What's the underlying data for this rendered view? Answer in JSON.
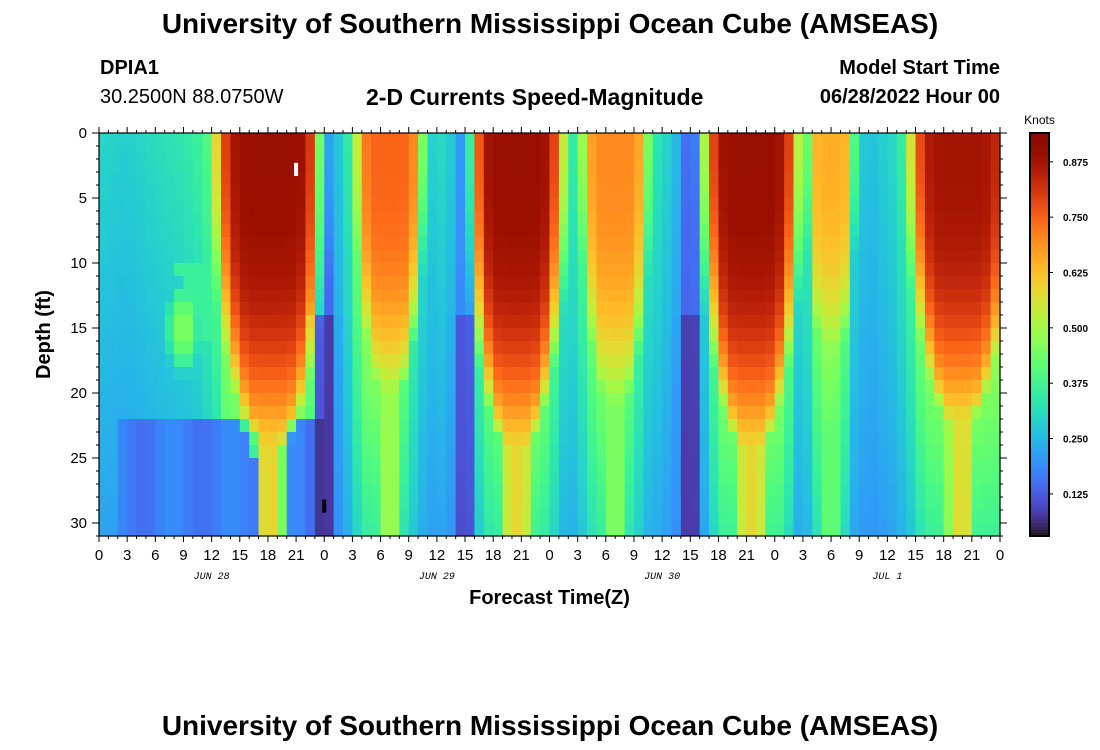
{
  "header": {
    "title": "University of Southern Mississippi Ocean Cube (AMSEAS)",
    "station": "DPIA1",
    "coords": "30.2500N  88.0750W",
    "plot_title": "2-D Currents Speed-Magnitude",
    "model_start_label": "Model Start Time",
    "model_start_value": "06/28/2022 Hour 00"
  },
  "footer": {
    "title": "University of Southern Mississippi Ocean Cube (AMSEAS)"
  },
  "chart_data": {
    "type": "heatmap",
    "title": "2-D Currents Speed-Magnitude",
    "xlabel": "Forecast Time(Z)",
    "ylabel": "Depth (ft)",
    "x_unit": "hours since 06/28/2022 00Z",
    "xlim": [
      0,
      96
    ],
    "ylim": [
      0,
      31
    ],
    "x_tick_values": [
      0,
      3,
      6,
      9,
      12,
      15,
      18,
      21,
      24,
      27,
      30,
      33,
      36,
      39,
      42,
      45,
      48,
      51,
      54,
      57,
      60,
      63,
      66,
      69,
      72,
      75,
      78,
      81,
      84,
      87,
      90,
      93,
      96
    ],
    "x_tick_labels": [
      "0",
      "3",
      "6",
      "9",
      "12",
      "15",
      "18",
      "21",
      "0",
      "3",
      "6",
      "9",
      "12",
      "15",
      "18",
      "21",
      "0",
      "3",
      "6",
      "9",
      "12",
      "15",
      "18",
      "21",
      "0",
      "3",
      "6",
      "9",
      "12",
      "15",
      "18",
      "21",
      "0"
    ],
    "date_labels": [
      {
        "hour": 12,
        "label": "JUN 28"
      },
      {
        "hour": 36,
        "label": "JUN 29"
      },
      {
        "hour": 60,
        "label": "JUN 30"
      },
      {
        "hour": 84,
        "label": "JUL 1"
      }
    ],
    "y_tick_values": [
      0,
      5,
      10,
      15,
      20,
      25,
      30
    ],
    "y_tick_labels": [
      "0",
      "5",
      "10",
      "15",
      "20",
      "25",
      "30"
    ],
    "colorbar": {
      "title": "Knots",
      "min": 0.03,
      "max": 0.94,
      "tick_values": [
        0.125,
        0.25,
        0.375,
        0.5,
        0.625,
        0.75,
        0.875
      ],
      "tick_labels": [
        "0.125",
        "0.250",
        "0.375",
        "0.500",
        "0.625",
        "0.750",
        "0.875"
      ]
    },
    "features": [
      {
        "description": "strong current column",
        "t0": 13,
        "t1": 23.5,
        "max_depth": 24,
        "peak_knots": 0.9
      },
      {
        "description": "strong current column",
        "t0": 28,
        "t1": 34,
        "max_depth": 20,
        "peak_knots": 0.75
      },
      {
        "description": "strong current column",
        "t0": 40,
        "t1": 49,
        "max_depth": 24,
        "peak_knots": 0.9
      },
      {
        "description": "strong current column",
        "t0": 52,
        "t1": 58,
        "max_depth": 21,
        "peak_knots": 0.7
      },
      {
        "description": "strong current column",
        "t0": 65,
        "t1": 74,
        "max_depth": 24,
        "peak_knots": 0.9
      },
      {
        "description": "strong current column",
        "t0": 76,
        "t1": 80,
        "max_depth": 18,
        "peak_knots": 0.65
      },
      {
        "description": "strong current column",
        "t0": 87,
        "t1": 96,
        "max_depth": 22,
        "peak_knots": 0.88
      },
      {
        "description": "moderate subsurface core",
        "t_center": 9,
        "depth_center": 15,
        "peak_knots": 0.45
      },
      {
        "description": "slack water",
        "t_center": 24,
        "peak_knots": 0.06
      },
      {
        "description": "slack water",
        "t_center": 39,
        "peak_knots": 0.07
      },
      {
        "description": "slack water",
        "t_center": 63,
        "peak_knots": 0.05
      }
    ]
  }
}
